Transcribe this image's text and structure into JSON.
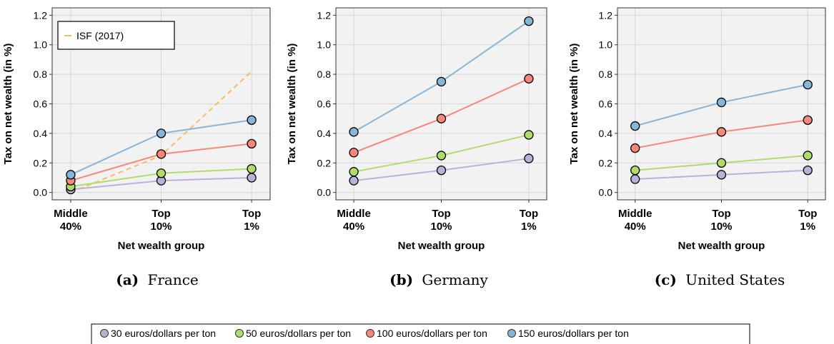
{
  "figure": {
    "captions": [
      {
        "tag": "(a)",
        "text": "France"
      },
      {
        "tag": "(b)",
        "text": "Germany"
      },
      {
        "tag": "(c)",
        "text": "United States"
      }
    ],
    "legend": [
      {
        "label": "30 euros/dollars per ton",
        "color": "#b7b3d8"
      },
      {
        "label": "50 euros/dollars per ton",
        "color": "#b0dc6c"
      },
      {
        "label": "100 euros/dollars per ton",
        "color": "#f7877a"
      },
      {
        "label": "150 euros/dollars per ton",
        "color": "#86b6d8"
      }
    ]
  },
  "chart_data": [
    {
      "type": "line",
      "title": "",
      "xlabel": "Net wealth group",
      "ylabel": "Tax on net wealth (in %)",
      "categories": [
        "Middle\n40%",
        "Top\n10%",
        "Top\n1%"
      ],
      "ylim": [
        -0.05,
        1.25
      ],
      "yticks": [
        "0.0",
        "0.2",
        "0.4",
        "0.6",
        "0.8",
        "1.0",
        "1.2"
      ],
      "grid": true,
      "series": [
        {
          "name": "30 euros/dollars per ton",
          "color": "#b7b3d8",
          "values": [
            0.02,
            0.08,
            0.1
          ]
        },
        {
          "name": "50 euros/dollars per ton",
          "color": "#b0dc6c",
          "values": [
            0.04,
            0.13,
            0.16
          ]
        },
        {
          "name": "100 euros/dollars per ton",
          "color": "#f7877a",
          "values": [
            0.08,
            0.26,
            0.33
          ]
        },
        {
          "name": "150 euros/dollars per ton",
          "color": "#86b6d8",
          "values": [
            0.12,
            0.4,
            0.49
          ]
        }
      ],
      "extra_series": [
        {
          "name": "ISF (2017)",
          "color": "#fdb863",
          "style": "dashed",
          "values": [
            0.0,
            0.25,
            0.82
          ]
        }
      ],
      "inner_legend": {
        "label": "ISF (2017)",
        "placement": "top-left"
      }
    },
    {
      "type": "line",
      "title": "",
      "xlabel": "Net wealth group",
      "ylabel": "Tax on net wealth (in %)",
      "categories": [
        "Middle\n40%",
        "Top\n10%",
        "Top\n1%"
      ],
      "ylim": [
        -0.05,
        1.25
      ],
      "yticks": [
        "0.0",
        "0.2",
        "0.4",
        "0.6",
        "0.8",
        "1.0",
        "1.2"
      ],
      "grid": true,
      "series": [
        {
          "name": "30 euros/dollars per ton",
          "color": "#b7b3d8",
          "values": [
            0.08,
            0.15,
            0.23
          ]
        },
        {
          "name": "50 euros/dollars per ton",
          "color": "#b0dc6c",
          "values": [
            0.14,
            0.25,
            0.39
          ]
        },
        {
          "name": "100 euros/dollars per ton",
          "color": "#f7877a",
          "values": [
            0.27,
            0.5,
            0.77
          ]
        },
        {
          "name": "150 euros/dollars per ton",
          "color": "#86b6d8",
          "values": [
            0.41,
            0.75,
            1.16
          ]
        }
      ]
    },
    {
      "type": "line",
      "title": "",
      "xlabel": "Net wealth group",
      "ylabel": "Tax on net wealth (in %)",
      "categories": [
        "Middle\n40%",
        "Top\n10%",
        "Top\n1%"
      ],
      "ylim": [
        -0.05,
        1.25
      ],
      "yticks": [
        "0.0",
        "0.2",
        "0.4",
        "0.6",
        "0.8",
        "1.0",
        "1.2"
      ],
      "grid": true,
      "series": [
        {
          "name": "30 euros/dollars per ton",
          "color": "#b7b3d8",
          "values": [
            0.09,
            0.12,
            0.15
          ]
        },
        {
          "name": "50 euros/dollars per ton",
          "color": "#b0dc6c",
          "values": [
            0.15,
            0.2,
            0.25
          ]
        },
        {
          "name": "100 euros/dollars per ton",
          "color": "#f7877a",
          "values": [
            0.3,
            0.41,
            0.49
          ]
        },
        {
          "name": "150 euros/dollars per ton",
          "color": "#86b6d8",
          "values": [
            0.45,
            0.61,
            0.73
          ]
        }
      ]
    }
  ]
}
